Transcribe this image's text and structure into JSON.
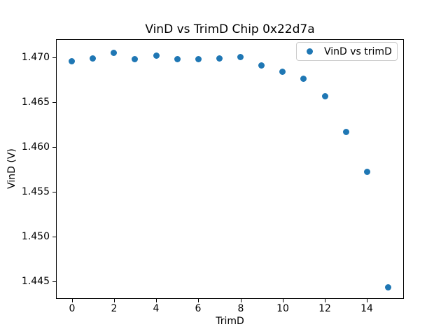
{
  "figure": {
    "background_color": "#ffffff",
    "text_color": "#000000",
    "spine_color": "#000000",
    "legend_border_color": "#cccccc"
  },
  "chart_data": {
    "type": "scatter",
    "title": "VinD vs TrimD Chip 0x22d7a",
    "xlabel": "TrimD",
    "ylabel": "VinD (V)",
    "legend": {
      "label": "VinD vs trimD",
      "position": "upper right"
    },
    "marker_color": "#1f77b4",
    "grid": false,
    "x": [
      0,
      1,
      2,
      3,
      4,
      5,
      6,
      7,
      8,
      9,
      10,
      11,
      12,
      13,
      14,
      15
    ],
    "y": [
      1.4696,
      1.4699,
      1.4705,
      1.4698,
      1.4702,
      1.4698,
      1.4698,
      1.4699,
      1.47,
      1.4691,
      1.4684,
      1.4676,
      1.4657,
      1.4617,
      1.4572,
      1.4443
    ],
    "xlim": [
      -0.75,
      15.75
    ],
    "ylim": [
      1.44305,
      1.47203
    ],
    "xticks": [
      0,
      2,
      4,
      6,
      8,
      10,
      12,
      14
    ],
    "xtick_labels": [
      "0",
      "2",
      "4",
      "6",
      "8",
      "10",
      "12",
      "14"
    ],
    "yticks": [
      1.445,
      1.45,
      1.455,
      1.46,
      1.465,
      1.47
    ],
    "ytick_labels": [
      "1.445",
      "1.450",
      "1.455",
      "1.460",
      "1.465",
      "1.470"
    ]
  }
}
